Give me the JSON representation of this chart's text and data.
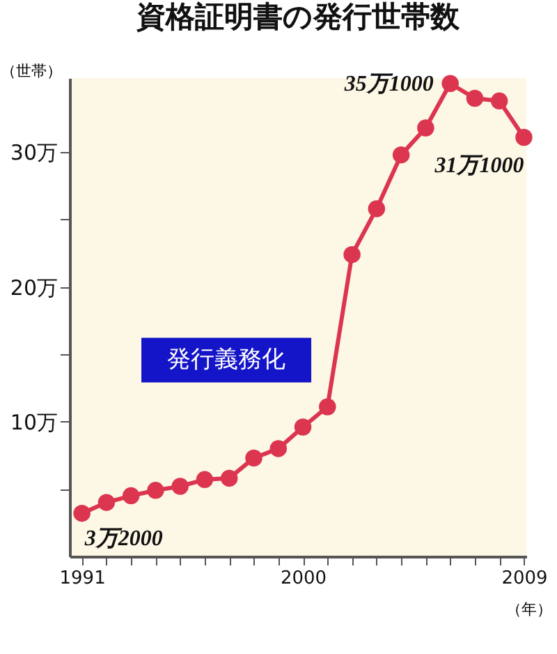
{
  "chart_data": {
    "type": "line",
    "title": "資格証明書の発行世帯数",
    "ylabel": "（世帯）",
    "xlabel": "（年）",
    "x": [
      1991,
      1992,
      1993,
      1994,
      1995,
      1996,
      1997,
      1998,
      1999,
      2000,
      2001,
      2002,
      2003,
      2004,
      2005,
      2006,
      2007,
      2008,
      2009
    ],
    "series": [
      {
        "color": "#dc3550",
        "values": [
          3.2,
          4.0,
          4.5,
          4.9,
          5.2,
          5.7,
          5.8,
          7.3,
          8.0,
          9.6,
          11.1,
          22.4,
          25.8,
          29.8,
          31.8,
          35.1,
          34.0,
          33.8,
          31.1
        ]
      }
    ],
    "xlim": [
      1990.5,
      2009.1
    ],
    "xticks": [
      1991,
      {
        "value": 1992,
        "label": null
      },
      {
        "value": 1993,
        "label": null
      },
      {
        "value": 1994,
        "label": null
      },
      {
        "value": 1995,
        "label": null
      },
      {
        "value": 1996,
        "label": null
      },
      {
        "value": 1997,
        "label": null
      },
      {
        "value": 1998,
        "label": null
      },
      {
        "value": 1999,
        "label": null
      },
      2000,
      {
        "value": 2001,
        "label": null
      },
      {
        "value": 2002,
        "label": null
      },
      {
        "value": 2003,
        "label": null
      },
      {
        "value": 2004,
        "label": null
      },
      {
        "value": 2005,
        "label": null
      },
      {
        "value": 2006,
        "label": null
      },
      {
        "value": 2007,
        "label": null
      },
      {
        "value": 2008,
        "label": null
      },
      2009
    ],
    "ylim": [
      0,
      35.5
    ],
    "yticks": [
      {
        "value": 5,
        "label": null
      },
      {
        "value": 10,
        "label": "10万"
      },
      {
        "value": 15,
        "label": null
      },
      {
        "value": 20,
        "label": "20万"
      },
      {
        "value": 25,
        "label": null
      },
      {
        "value": 30,
        "label": "30万"
      }
    ],
    "marker": "circle",
    "line_style": "solid",
    "annotations": [
      {
        "text": "3万2000",
        "x": 1991,
        "y": 3.2
      },
      {
        "text": "35万1000",
        "x": 2006,
        "y": 35.1
      },
      {
        "text": "31万1000",
        "x": 2009,
        "y": 31.1
      },
      {
        "text": "発行義務化",
        "x": 2000,
        "y": 9.6
      }
    ]
  }
}
